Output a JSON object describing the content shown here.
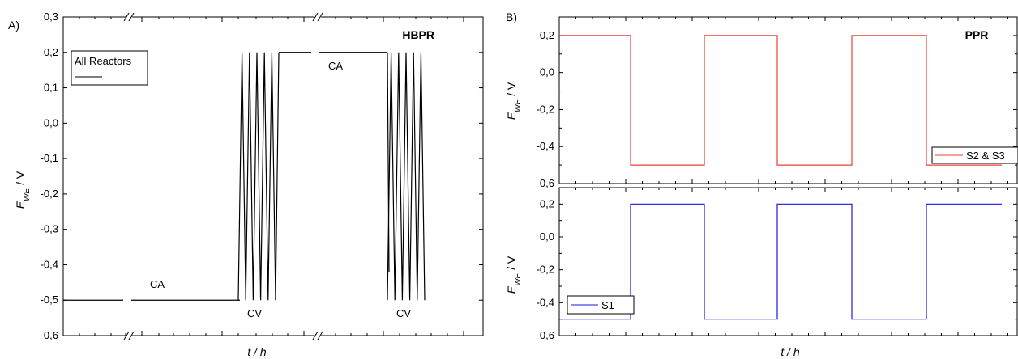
{
  "chart_data": [
    {
      "panel": "A)",
      "type": "line",
      "title": "HBPR",
      "xlabel": "t / h",
      "ylabel": "E_WE / V",
      "ylim": [
        -0.6,
        0.3
      ],
      "y_ticks": [
        "-0,6",
        "-0,5",
        "-0,4",
        "-0,3",
        "-0,2",
        "-0,1",
        "0,0",
        "0,1",
        "0,2",
        "0,3"
      ],
      "grid": false,
      "axis_breaks": 2,
      "legend": {
        "position": "top-left",
        "entries": [
          "All Reactors"
        ]
      },
      "annotations": [
        "CA",
        "CV",
        "CA",
        "CV"
      ],
      "series": [
        {
          "name": "All Reactors",
          "color": "#000000",
          "segments": [
            {
              "mode": "CA",
              "value": -0.5
            },
            {
              "mode": "CA",
              "value": -0.5
            },
            {
              "mode": "CV",
              "min": -0.5,
              "max": 0.2,
              "cycles": 5
            },
            {
              "mode": "CA",
              "value": 0.2
            },
            {
              "mode": "CA",
              "value": 0.2
            },
            {
              "mode": "CV",
              "min": -0.5,
              "max": 0.2,
              "cycles": 5
            }
          ]
        }
      ]
    },
    {
      "panel": "B)",
      "type": "line",
      "title": "PPR",
      "xlabel": "",
      "ylabel": "E_WE / V",
      "ylim": [
        -0.6,
        0.3
      ],
      "y_ticks": [
        "-0,6",
        "-0,4",
        "-0,2",
        "0,0",
        "0,2"
      ],
      "grid": false,
      "legend": {
        "position": "right",
        "entries": [
          "S2 & S3"
        ]
      },
      "series": [
        {
          "name": "S2 & S3",
          "color": "#e8403a",
          "levels": [
            0.2,
            -0.5,
            0.2,
            -0.5,
            0.2,
            -0.5
          ]
        }
      ]
    },
    {
      "panel": "",
      "type": "line",
      "title": "",
      "xlabel": "t / h",
      "ylabel": "E_WE / V",
      "ylim": [
        -0.6,
        0.3
      ],
      "y_ticks": [
        "-0,6",
        "-0,4",
        "-0,2",
        "0,0",
        "0,2"
      ],
      "grid": false,
      "legend": {
        "position": "bottom-left",
        "entries": [
          "S1"
        ]
      },
      "series": [
        {
          "name": "S1",
          "color": "#1a1adb",
          "levels": [
            -0.5,
            0.2,
            -0.5,
            0.2,
            -0.5,
            0.2
          ]
        }
      ]
    }
  ]
}
